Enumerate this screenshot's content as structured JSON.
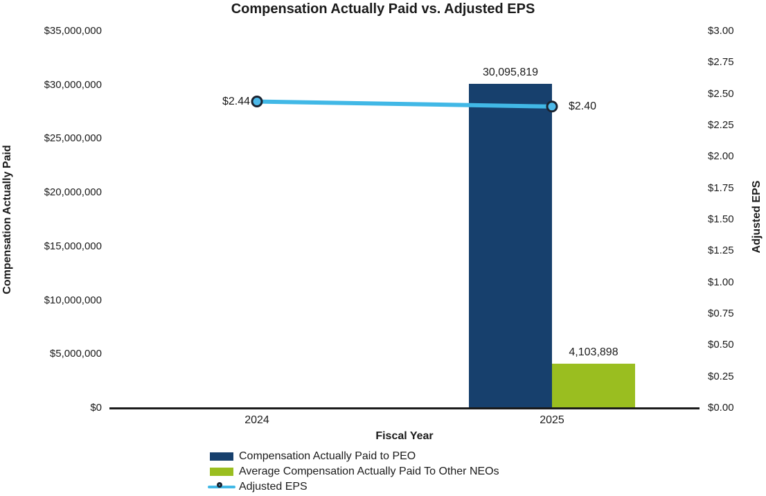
{
  "chart_data": {
    "type": "combo",
    "title": "Compensation Actually Paid vs. Adjusted EPS",
    "categories": [
      "2024",
      "2025"
    ],
    "xlabel": "Fiscal Year",
    "grid": false,
    "legend_position": "bottom-left",
    "left_axis": {
      "label": "Compensation Actually Paid",
      "min": 0,
      "max": 35000000,
      "step": 5000000,
      "tick_labels": [
        "$35,000,000",
        "$30,000,000",
        "$25,000,000",
        "$20,000,000",
        "$15,000,000",
        "$10,000,000",
        "$5,000,000",
        "$0"
      ]
    },
    "right_axis": {
      "label": "Adjusted EPS",
      "min": 0,
      "max": 3,
      "step": 0.25,
      "tick_labels": [
        "$3.00",
        "$2.75",
        "$2.50",
        "$2.25",
        "$2.00",
        "$1.75",
        "$1.50",
        "$1.25",
        "$1.00",
        "$0.75",
        "$0.50",
        "$0.25",
        "$0.00"
      ]
    },
    "series": [
      {
        "name": "Compensation Actually Paid to PEO",
        "type": "bar",
        "axis": "left",
        "color": "#17406d",
        "values": [
          null,
          30095819
        ],
        "labels": [
          null,
          "30,095,819"
        ]
      },
      {
        "name": "Average Compensation Actually Paid To Other NEOs",
        "type": "bar",
        "axis": "left",
        "color": "#9abe20",
        "values": [
          null,
          4103898
        ],
        "labels": [
          null,
          "4,103,898"
        ]
      },
      {
        "name": "Adjusted EPS",
        "type": "line",
        "axis": "right",
        "color": "#41b8e6",
        "marker_fill": "#4db9e9",
        "marker_stroke": "#1b2330",
        "values": [
          2.44,
          2.4
        ],
        "labels": [
          "$2.44",
          "$2.40"
        ]
      }
    ],
    "axis_line_color": "#1a1a1a",
    "text_color": "#1a1a1a",
    "background_color": "#ffffff"
  }
}
